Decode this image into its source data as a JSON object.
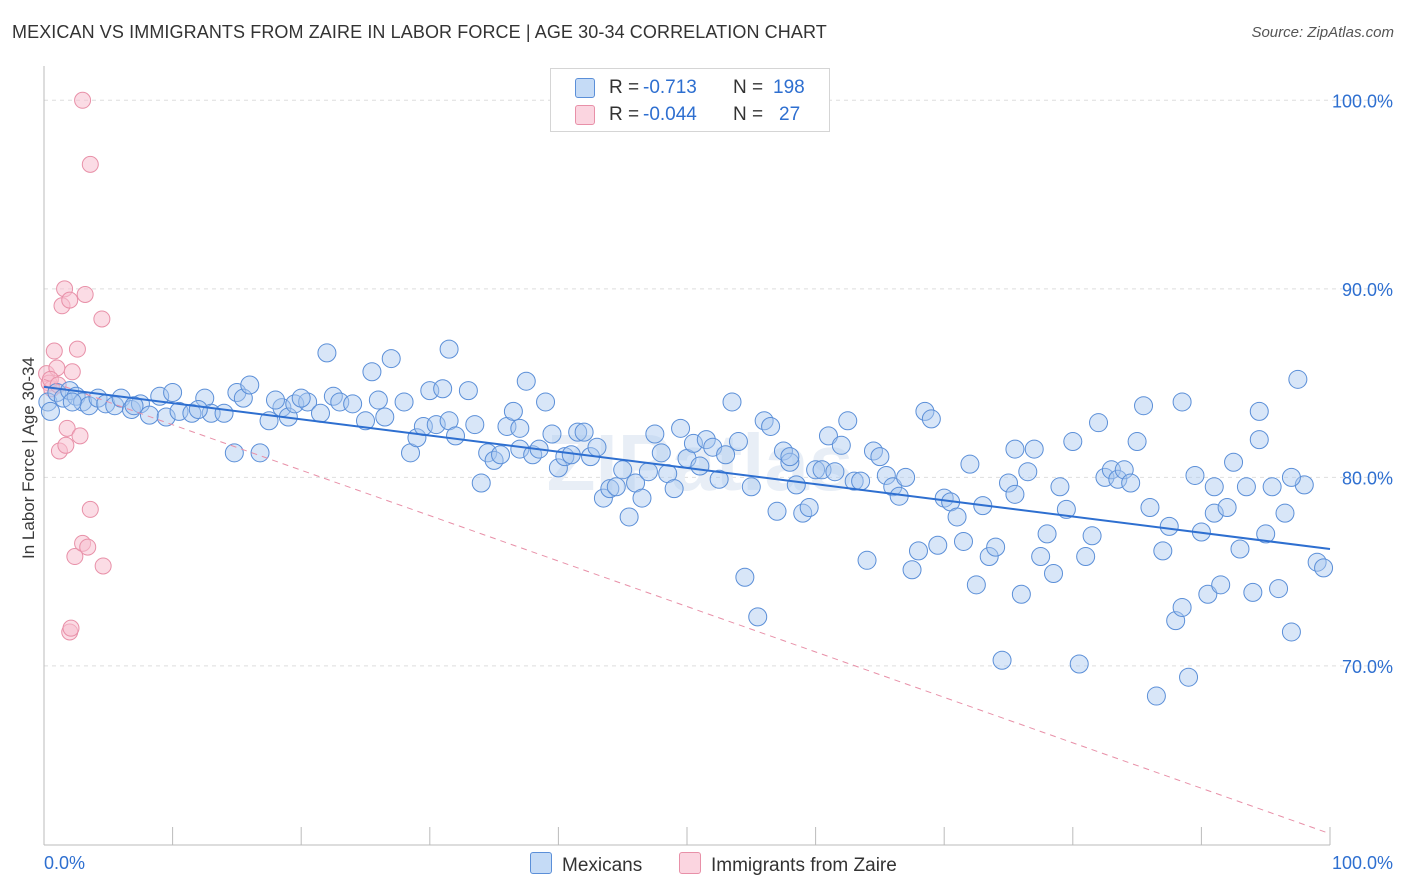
{
  "title": "MEXICAN VS IMMIGRANTS FROM ZAIRE IN LABOR FORCE | AGE 30-34 CORRELATION CHART",
  "source": "Source: ZipAtlas.com",
  "watermark": "ZIPatlas",
  "legend_top": {
    "rows": [
      {
        "r_label": "R =",
        "r_value": "-0.713",
        "n_label": "N =",
        "n_value": "198",
        "color": "#a8c8f0",
        "border": "#5b8fd8"
      },
      {
        "r_label": "R =",
        "r_value": "-0.044",
        "n_label": "N =",
        "n_value": "27",
        "color": "#f8c0d0",
        "border": "#e890a8"
      }
    ]
  },
  "legend_bottom": {
    "mexicans": "Mexicans",
    "zaire": "Immigrants from Zaire"
  },
  "chart_data": {
    "type": "scatter",
    "title": "MEXICAN VS IMMIGRANTS FROM ZAIRE IN LABOR FORCE | AGE 30-34 CORRELATION CHART",
    "xlabel": "",
    "ylabel": "In Labor Force | Age 30-34",
    "xlim": [
      0,
      100
    ],
    "ylim": [
      60.5,
      101.5
    ],
    "x_tick_labels": [
      "0.0%",
      "100.0%"
    ],
    "y_ticks": [
      100,
      90,
      80,
      70
    ],
    "y_tick_labels": [
      "100.0%",
      "90.0%",
      "80.0%",
      "70.0%"
    ],
    "grid": true,
    "legend_position": "top-center",
    "colors": {
      "mexicans": "#5b8fd8",
      "mexicans_fill": "#a8c8f0",
      "zaire": "#e890a8",
      "zaire_fill": "#f8c0d0",
      "trend_blue": "#2e6fd0",
      "trend_pink": "#e890a8",
      "tick_label": "#2e6fd0"
    },
    "series": [
      {
        "name": "Mexicans",
        "trend": {
          "x": [
            0,
            100
          ],
          "y": [
            84.8,
            76.2
          ]
        },
        "points": [
          [
            0.3,
            84.0
          ],
          [
            0.5,
            83.5
          ],
          [
            1.0,
            84.5
          ],
          [
            1.5,
            84.2
          ],
          [
            2.0,
            84.6
          ],
          [
            2.5,
            84.3
          ],
          [
            3.0,
            84.0
          ],
          [
            3.5,
            83.8
          ],
          [
            4.2,
            84.2
          ],
          [
            4.8,
            83.9
          ],
          [
            5.5,
            83.8
          ],
          [
            6.0,
            84.2
          ],
          [
            6.8,
            83.6
          ],
          [
            7.5,
            83.9
          ],
          [
            8.2,
            83.3
          ],
          [
            9.0,
            84.3
          ],
          [
            9.5,
            83.2
          ],
          [
            10.5,
            83.5
          ],
          [
            11.5,
            83.4
          ],
          [
            12.5,
            84.2
          ],
          [
            13.0,
            83.4
          ],
          [
            14.0,
            83.4
          ],
          [
            15.0,
            84.5
          ],
          [
            15.5,
            84.2
          ],
          [
            16.0,
            84.9
          ],
          [
            14.8,
            81.3
          ],
          [
            16.8,
            81.3
          ],
          [
            17.5,
            83.0
          ],
          [
            18.5,
            83.7
          ],
          [
            19.0,
            83.2
          ],
          [
            19.5,
            83.9
          ],
          [
            20.5,
            84.0
          ],
          [
            21.5,
            83.4
          ],
          [
            22.0,
            86.6
          ],
          [
            22.5,
            84.3
          ],
          [
            23.0,
            84.0
          ],
          [
            24.0,
            83.9
          ],
          [
            25.0,
            83.0
          ],
          [
            25.5,
            85.6
          ],
          [
            26.0,
            84.1
          ],
          [
            26.5,
            83.2
          ],
          [
            27.0,
            86.3
          ],
          [
            28.0,
            84.0
          ],
          [
            28.5,
            81.3
          ],
          [
            29.0,
            82.1
          ],
          [
            29.5,
            82.7
          ],
          [
            30.0,
            84.6
          ],
          [
            30.5,
            82.8
          ],
          [
            31.0,
            84.7
          ],
          [
            31.5,
            83.0
          ],
          [
            32.0,
            82.2
          ],
          [
            33.0,
            84.6
          ],
          [
            33.5,
            82.8
          ],
          [
            34.0,
            79.7
          ],
          [
            34.5,
            81.3
          ],
          [
            35.0,
            80.9
          ],
          [
            35.5,
            81.2
          ],
          [
            36.0,
            82.7
          ],
          [
            36.5,
            83.5
          ],
          [
            37.0,
            81.5
          ],
          [
            37.5,
            85.1
          ],
          [
            38.0,
            81.2
          ],
          [
            38.5,
            81.5
          ],
          [
            39.0,
            84.0
          ],
          [
            39.5,
            82.3
          ],
          [
            40.0,
            80.5
          ],
          [
            40.5,
            81.1
          ],
          [
            41.0,
            81.2
          ],
          [
            41.5,
            82.4
          ],
          [
            42.0,
            82.4
          ],
          [
            42.5,
            81.1
          ],
          [
            43.0,
            81.6
          ],
          [
            43.5,
            78.9
          ],
          [
            44.0,
            79.4
          ],
          [
            44.5,
            79.5
          ],
          [
            45.0,
            80.4
          ],
          [
            45.5,
            77.9
          ],
          [
            46.0,
            79.7
          ],
          [
            46.5,
            78.9
          ],
          [
            47.0,
            80.3
          ],
          [
            47.5,
            82.3
          ],
          [
            48.0,
            81.3
          ],
          [
            48.5,
            80.2
          ],
          [
            49.0,
            79.4
          ],
          [
            49.5,
            82.6
          ],
          [
            50.0,
            81.0
          ],
          [
            50.5,
            81.8
          ],
          [
            51.0,
            80.6
          ],
          [
            51.5,
            82.0
          ],
          [
            52.0,
            81.6
          ],
          [
            52.5,
            79.9
          ],
          [
            53.0,
            81.2
          ],
          [
            53.5,
            84.0
          ],
          [
            54.0,
            81.9
          ],
          [
            54.5,
            74.7
          ],
          [
            55.0,
            79.5
          ],
          [
            55.5,
            72.6
          ],
          [
            56.0,
            83.0
          ],
          [
            56.5,
            82.7
          ],
          [
            57.0,
            78.2
          ],
          [
            57.5,
            81.4
          ],
          [
            58.0,
            80.8
          ],
          [
            58.5,
            79.6
          ],
          [
            59.0,
            78.1
          ],
          [
            59.5,
            78.4
          ],
          [
            60.0,
            80.4
          ],
          [
            60.5,
            80.4
          ],
          [
            61.0,
            82.2
          ],
          [
            61.5,
            80.3
          ],
          [
            62.0,
            81.7
          ],
          [
            62.5,
            83.0
          ],
          [
            63.0,
            79.8
          ],
          [
            63.5,
            79.8
          ],
          [
            64.0,
            75.6
          ],
          [
            64.5,
            81.4
          ],
          [
            65.0,
            81.1
          ],
          [
            65.5,
            80.1
          ],
          [
            66.0,
            79.5
          ],
          [
            66.5,
            79.0
          ],
          [
            67.0,
            80.0
          ],
          [
            67.5,
            75.1
          ],
          [
            68.0,
            76.1
          ],
          [
            68.5,
            83.5
          ],
          [
            69.0,
            83.1
          ],
          [
            69.5,
            76.4
          ],
          [
            70.0,
            78.9
          ],
          [
            70.5,
            78.7
          ],
          [
            71.0,
            77.9
          ],
          [
            71.5,
            76.6
          ],
          [
            72.0,
            80.7
          ],
          [
            72.5,
            74.3
          ],
          [
            73.0,
            78.5
          ],
          [
            73.5,
            75.8
          ],
          [
            74.0,
            76.3
          ],
          [
            74.5,
            70.3
          ],
          [
            75.0,
            79.7
          ],
          [
            75.5,
            79.1
          ],
          [
            76.0,
            73.8
          ],
          [
            76.5,
            80.3
          ],
          [
            77.0,
            81.5
          ],
          [
            77.5,
            75.8
          ],
          [
            78.0,
            77.0
          ],
          [
            78.5,
            74.9
          ],
          [
            79.0,
            79.5
          ],
          [
            79.5,
            78.3
          ],
          [
            80.0,
            81.9
          ],
          [
            80.5,
            70.1
          ],
          [
            81.0,
            75.8
          ],
          [
            81.5,
            76.9
          ],
          [
            82.0,
            82.9
          ],
          [
            82.5,
            80.0
          ],
          [
            83.0,
            80.4
          ],
          [
            83.5,
            79.9
          ],
          [
            84.0,
            80.4
          ],
          [
            84.5,
            79.7
          ],
          [
            85.0,
            81.9
          ],
          [
            85.5,
            83.8
          ],
          [
            86.0,
            78.4
          ],
          [
            86.5,
            68.4
          ],
          [
            87.0,
            76.1
          ],
          [
            87.5,
            77.4
          ],
          [
            88.0,
            72.4
          ],
          [
            88.5,
            73.1
          ],
          [
            89.0,
            69.4
          ],
          [
            89.5,
            80.1
          ],
          [
            90.0,
            77.1
          ],
          [
            90.5,
            73.8
          ],
          [
            91.0,
            78.1
          ],
          [
            91.5,
            74.3
          ],
          [
            92.0,
            78.4
          ],
          [
            92.5,
            80.8
          ],
          [
            93.0,
            76.2
          ],
          [
            93.5,
            79.5
          ],
          [
            94.0,
            73.9
          ],
          [
            94.5,
            83.5
          ],
          [
            95.0,
            77.0
          ],
          [
            95.5,
            79.5
          ],
          [
            96.0,
            74.1
          ],
          [
            96.5,
            78.1
          ],
          [
            97.0,
            71.8
          ],
          [
            97.5,
            85.2
          ],
          [
            98.0,
            79.6
          ],
          [
            99.0,
            75.5
          ],
          [
            99.5,
            75.2
          ],
          [
            18.0,
            84.1
          ],
          [
            12.0,
            83.6
          ],
          [
            10.0,
            84.5
          ],
          [
            7.0,
            83.8
          ],
          [
            20.0,
            84.2
          ],
          [
            31.5,
            86.8
          ],
          [
            37.0,
            82.6
          ],
          [
            58.0,
            81.1
          ],
          [
            75.5,
            81.5
          ],
          [
            88.5,
            84.0
          ],
          [
            91.0,
            79.5
          ],
          [
            94.5,
            82.0
          ],
          [
            97.0,
            80.0
          ],
          [
            2.2,
            84.0
          ]
        ]
      },
      {
        "name": "Immigrants from Zaire",
        "trend": {
          "x": [
            0,
            100
          ],
          "y": [
            85.2,
            61.1
          ]
        },
        "points": [
          [
            0.2,
            85.5
          ],
          [
            0.4,
            85.0
          ],
          [
            0.6,
            84.7
          ],
          [
            0.8,
            86.7
          ],
          [
            1.0,
            85.8
          ],
          [
            1.2,
            81.4
          ],
          [
            1.4,
            89.1
          ],
          [
            1.6,
            90.0
          ],
          [
            1.8,
            82.6
          ],
          [
            2.0,
            89.4
          ],
          [
            2.2,
            85.6
          ],
          [
            2.4,
            75.8
          ],
          [
            2.6,
            86.8
          ],
          [
            2.8,
            82.2
          ],
          [
            3.0,
            76.5
          ],
          [
            3.2,
            89.7
          ],
          [
            3.4,
            76.3
          ],
          [
            3.6,
            78.3
          ],
          [
            3.0,
            100.0
          ],
          [
            3.6,
            96.6
          ],
          [
            4.5,
            88.4
          ],
          [
            4.6,
            75.3
          ],
          [
            2.0,
            71.8
          ],
          [
            2.1,
            72.0
          ],
          [
            0.5,
            85.2
          ],
          [
            1.1,
            84.9
          ],
          [
            1.7,
            81.7
          ]
        ]
      }
    ]
  }
}
